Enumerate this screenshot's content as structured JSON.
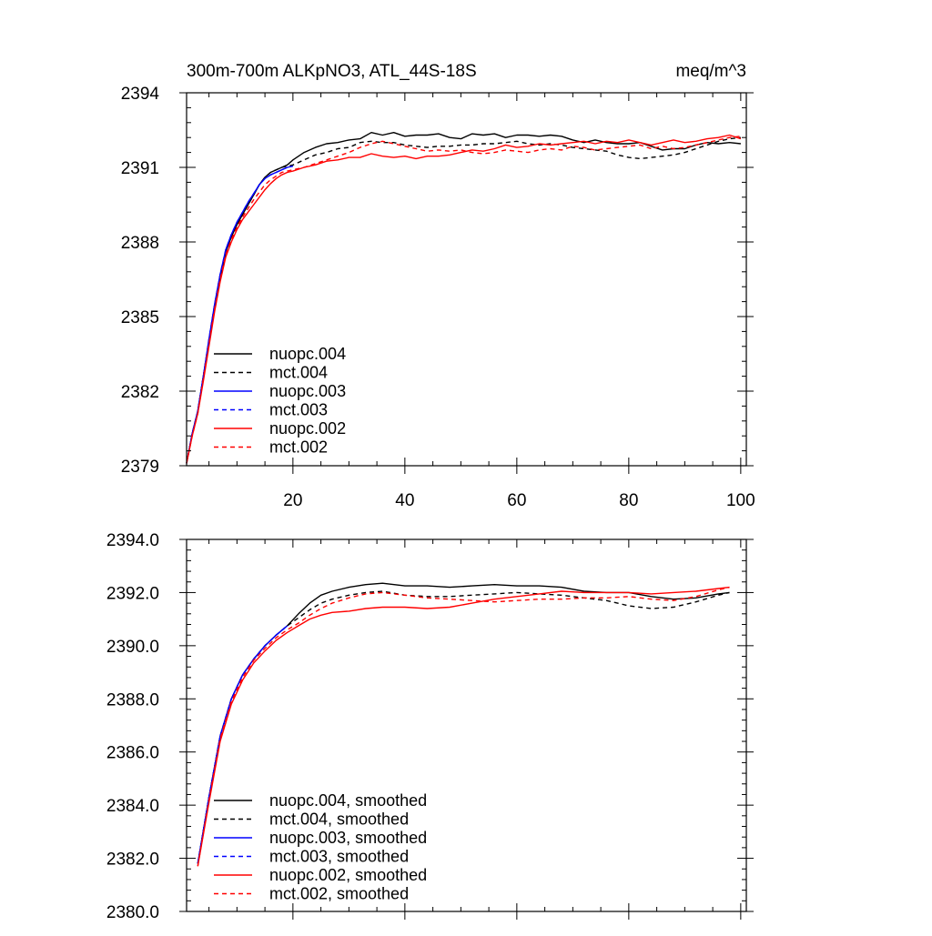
{
  "chart_data": [
    {
      "type": "line",
      "title_left": "300m-700m ALKpNO3, ATL_44S-18S",
      "title_right": "meq/m^3",
      "xlim": [
        1,
        101
      ],
      "ylim": [
        2379,
        2394
      ],
      "xticks": [
        20,
        40,
        60,
        80,
        100
      ],
      "xtick_labels": [
        "20",
        "40",
        "60",
        "80",
        "100"
      ],
      "yticks": [
        2379,
        2382,
        2385,
        2388,
        2391,
        2394
      ],
      "ytick_labels": [
        "2379",
        "2382",
        "2385",
        "2388",
        "2391",
        "2394"
      ],
      "series": [
        {
          "name": "nuopc.004",
          "color": "#000000",
          "dash": false,
          "x": [
            1,
            2,
            3,
            4,
            5,
            6,
            7,
            8,
            9,
            10,
            11,
            12,
            13,
            14,
            15,
            16,
            17,
            18,
            19,
            20,
            22,
            24,
            26,
            28,
            30,
            32,
            34,
            36,
            38,
            40,
            42,
            44,
            46,
            48,
            50,
            52,
            54,
            56,
            58,
            60,
            62,
            64,
            66,
            68,
            70,
            72,
            74,
            76,
            78,
            80,
            82,
            84,
            86,
            88,
            90,
            92,
            94,
            96,
            98,
            100
          ],
          "values": [
            2379.1,
            2380.3,
            2381.2,
            2382.6,
            2384.0,
            2385.4,
            2386.6,
            2387.6,
            2388.2,
            2388.7,
            2389.1,
            2389.5,
            2389.9,
            2390.3,
            2390.6,
            2390.8,
            2390.9,
            2391.0,
            2391.1,
            2391.3,
            2391.6,
            2391.8,
            2391.95,
            2392.0,
            2392.1,
            2392.15,
            2392.4,
            2392.3,
            2392.4,
            2392.25,
            2392.3,
            2392.3,
            2392.35,
            2392.2,
            2392.15,
            2392.35,
            2392.3,
            2392.35,
            2392.2,
            2392.3,
            2392.3,
            2392.25,
            2392.3,
            2392.25,
            2392.1,
            2392.0,
            2392.1,
            2392.0,
            2391.95,
            2391.95,
            2392.0,
            2391.85,
            2391.7,
            2391.75,
            2391.75,
            2391.9,
            2392.0,
            2391.95,
            2392.0,
            2391.95
          ]
        },
        {
          "name": "mct.004",
          "color": "#000000",
          "dash": true,
          "x": [
            1,
            2,
            3,
            4,
            5,
            6,
            7,
            8,
            9,
            10,
            11,
            12,
            13,
            14,
            15,
            16,
            17,
            18,
            19,
            20,
            22,
            24,
            26,
            28,
            30,
            32,
            34,
            36,
            38,
            40,
            42,
            44,
            46,
            48,
            50,
            52,
            54,
            56,
            58,
            60,
            62,
            64,
            66,
            68,
            70,
            72,
            74,
            76,
            78,
            80,
            82,
            84,
            86,
            88,
            90,
            92,
            94,
            96,
            98,
            100
          ],
          "values": [
            2379.1,
            2380.3,
            2381.2,
            2382.6,
            2384.0,
            2385.4,
            2386.6,
            2387.6,
            2388.2,
            2388.7,
            2389.1,
            2389.5,
            2389.9,
            2390.3,
            2390.6,
            2390.8,
            2390.9,
            2391.0,
            2391.05,
            2391.1,
            2391.3,
            2391.5,
            2391.6,
            2391.75,
            2391.8,
            2392.0,
            2392.05,
            2392.0,
            2392.0,
            2391.9,
            2391.85,
            2391.8,
            2391.85,
            2391.85,
            2391.9,
            2391.9,
            2391.95,
            2391.95,
            2392.0,
            2392.05,
            2391.95,
            2391.9,
            2391.95,
            2391.9,
            2391.8,
            2391.75,
            2391.7,
            2391.65,
            2391.5,
            2391.4,
            2391.35,
            2391.4,
            2391.45,
            2391.5,
            2391.6,
            2391.75,
            2391.9,
            2392.05,
            2392.15,
            2392.2
          ]
        },
        {
          "name": "nuopc.003",
          "color": "#0000ff",
          "dash": false,
          "x": [
            1,
            2,
            3,
            4,
            5,
            6,
            7,
            8,
            9,
            10,
            11,
            12,
            13,
            14,
            15,
            16,
            17,
            18,
            19,
            20
          ],
          "values": [
            2379.1,
            2380.3,
            2381.2,
            2382.6,
            2384.1,
            2385.5,
            2386.7,
            2387.7,
            2388.3,
            2388.8,
            2389.2,
            2389.6,
            2389.95,
            2390.3,
            2390.55,
            2390.7,
            2390.8,
            2390.9,
            2391.0,
            2391.05
          ]
        },
        {
          "name": "mct.003",
          "color": "#0000ff",
          "dash": true,
          "x": [
            1,
            2,
            3,
            4,
            5,
            6,
            7,
            8,
            9,
            10,
            11,
            12,
            13,
            14,
            15,
            16,
            17,
            18,
            19,
            20
          ],
          "values": [
            2379.1,
            2380.3,
            2381.2,
            2382.6,
            2384.1,
            2385.5,
            2386.7,
            2387.7,
            2388.3,
            2388.8,
            2389.2,
            2389.6,
            2389.95,
            2390.3,
            2390.55,
            2390.7,
            2390.8,
            2390.9,
            2391.0,
            2391.05
          ]
        },
        {
          "name": "nuopc.002",
          "color": "#ff0000",
          "dash": false,
          "x": [
            1,
            2,
            3,
            4,
            5,
            6,
            7,
            8,
            9,
            10,
            11,
            12,
            13,
            14,
            15,
            16,
            17,
            18,
            19,
            20,
            22,
            24,
            26,
            28,
            30,
            32,
            34,
            36,
            38,
            40,
            42,
            44,
            46,
            48,
            50,
            52,
            54,
            56,
            58,
            60,
            62,
            64,
            66,
            68,
            70,
            72,
            74,
            76,
            78,
            80,
            82,
            84,
            86,
            88,
            90,
            92,
            94,
            96,
            98,
            100
          ],
          "values": [
            2379.1,
            2380.2,
            2381.1,
            2382.4,
            2383.8,
            2385.2,
            2386.4,
            2387.4,
            2388.0,
            2388.5,
            2388.9,
            2389.2,
            2389.5,
            2389.8,
            2390.1,
            2390.35,
            2390.55,
            2390.7,
            2390.8,
            2390.85,
            2391.0,
            2391.1,
            2391.25,
            2391.3,
            2391.4,
            2391.4,
            2391.55,
            2391.45,
            2391.4,
            2391.45,
            2391.35,
            2391.45,
            2391.45,
            2391.5,
            2391.6,
            2391.7,
            2391.65,
            2391.75,
            2391.9,
            2391.8,
            2391.85,
            2391.95,
            2391.9,
            2391.95,
            2392.0,
            2392.05,
            2391.95,
            2392.05,
            2392.0,
            2392.1,
            2392.0,
            2391.9,
            2392.0,
            2392.1,
            2392.0,
            2392.05,
            2392.15,
            2392.2,
            2392.3,
            2392.15
          ]
        },
        {
          "name": "mct.002",
          "color": "#ff0000",
          "dash": true,
          "x": [
            1,
            2,
            3,
            4,
            5,
            6,
            7,
            8,
            9,
            10,
            11,
            12,
            13,
            14,
            15,
            16,
            17,
            18,
            19,
            20,
            22,
            24,
            26,
            28,
            30,
            32,
            34,
            36,
            38,
            40,
            42,
            44,
            46,
            48,
            50,
            52,
            54,
            56,
            58,
            60,
            62,
            64,
            66,
            68,
            70,
            72,
            74,
            76,
            78,
            80,
            82,
            84,
            86,
            88,
            90,
            92,
            94,
            96,
            98,
            100
          ],
          "values": [
            2379.1,
            2380.2,
            2381.1,
            2382.5,
            2383.9,
            2385.3,
            2386.5,
            2387.5,
            2388.1,
            2388.6,
            2389.0,
            2389.35,
            2389.7,
            2390.0,
            2390.3,
            2390.5,
            2390.65,
            2390.8,
            2390.85,
            2390.9,
            2391.0,
            2391.15,
            2391.3,
            2391.45,
            2391.6,
            2391.8,
            2391.95,
            2392.05,
            2391.95,
            2391.85,
            2391.75,
            2391.65,
            2391.7,
            2391.65,
            2391.7,
            2391.6,
            2391.55,
            2391.6,
            2391.7,
            2391.65,
            2391.6,
            2391.7,
            2391.75,
            2391.7,
            2391.85,
            2391.8,
            2391.7,
            2391.75,
            2391.8,
            2391.85,
            2391.9,
            2391.75,
            2391.85,
            2391.75,
            2391.8,
            2391.9,
            2392.0,
            2392.1,
            2392.2,
            2392.25
          ]
        }
      ]
    },
    {
      "type": "line",
      "xlim": [
        1,
        101
      ],
      "ylim": [
        2380,
        2394
      ],
      "xticks": [
        20,
        40,
        60,
        80,
        100
      ],
      "xtick_labels": [],
      "yticks": [
        2380,
        2382,
        2384,
        2386,
        2388,
        2390,
        2392,
        2394
      ],
      "ytick_labels": [
        "2380.0",
        "2382.0",
        "2384.0",
        "2386.0",
        "2388.0",
        "2390.0",
        "2392.0",
        "2394.0"
      ],
      "series": [
        {
          "name": "nuopc.004, smoothed",
          "color": "#000000",
          "dash": false,
          "x": [
            3,
            5,
            7,
            9,
            11,
            13,
            15,
            17,
            19,
            21,
            23,
            25,
            27,
            30,
            33,
            36,
            40,
            44,
            48,
            52,
            56,
            60,
            64,
            68,
            72,
            76,
            80,
            84,
            88,
            92,
            96,
            98
          ],
          "values": [
            2381.8,
            2384.3,
            2386.6,
            2388.0,
            2388.9,
            2389.5,
            2390.0,
            2390.4,
            2390.75,
            2391.2,
            2391.6,
            2391.9,
            2392.05,
            2392.2,
            2392.3,
            2392.35,
            2392.25,
            2392.25,
            2392.2,
            2392.25,
            2392.3,
            2392.25,
            2392.25,
            2392.2,
            2392.05,
            2392.0,
            2392.0,
            2391.85,
            2391.75,
            2391.8,
            2391.95,
            2392.0
          ]
        },
        {
          "name": "mct.004, smoothed",
          "color": "#000000",
          "dash": true,
          "x": [
            3,
            5,
            7,
            9,
            11,
            13,
            15,
            17,
            19,
            21,
            23,
            25,
            27,
            30,
            33,
            36,
            40,
            44,
            48,
            52,
            56,
            60,
            64,
            68,
            72,
            76,
            80,
            84,
            88,
            92,
            96,
            98
          ],
          "values": [
            2381.8,
            2384.3,
            2386.6,
            2388.0,
            2388.9,
            2389.5,
            2390.0,
            2390.4,
            2390.75,
            2391.05,
            2391.35,
            2391.6,
            2391.75,
            2391.9,
            2392.0,
            2392.05,
            2391.9,
            2391.85,
            2391.85,
            2391.9,
            2391.95,
            2392.0,
            2391.95,
            2391.9,
            2391.8,
            2391.7,
            2391.5,
            2391.4,
            2391.45,
            2391.65,
            2391.9,
            2392.0
          ]
        },
        {
          "name": "nuopc.003, smoothed",
          "color": "#0000ff",
          "dash": false,
          "x": [
            3,
            5,
            7,
            9,
            11,
            13,
            15,
            17,
            19
          ],
          "values": [
            2381.8,
            2384.3,
            2386.6,
            2388.0,
            2388.9,
            2389.5,
            2390.0,
            2390.4,
            2390.75
          ]
        },
        {
          "name": "mct.003, smoothed",
          "color": "#0000ff",
          "dash": true,
          "x": [
            3,
            5,
            7,
            9,
            11,
            13,
            15,
            17,
            19
          ],
          "values": [
            2381.8,
            2384.3,
            2386.6,
            2388.0,
            2388.9,
            2389.5,
            2390.0,
            2390.4,
            2390.75
          ]
        },
        {
          "name": "nuopc.002, smoothed",
          "color": "#ff0000",
          "dash": false,
          "x": [
            3,
            5,
            7,
            9,
            11,
            13,
            15,
            17,
            19,
            21,
            23,
            25,
            27,
            30,
            33,
            36,
            40,
            44,
            48,
            52,
            56,
            60,
            64,
            68,
            72,
            76,
            80,
            84,
            88,
            92,
            96,
            98
          ],
          "values": [
            2381.7,
            2384.1,
            2386.4,
            2387.8,
            2388.7,
            2389.35,
            2389.8,
            2390.2,
            2390.5,
            2390.75,
            2391.0,
            2391.15,
            2391.25,
            2391.3,
            2391.4,
            2391.45,
            2391.45,
            2391.4,
            2391.45,
            2391.6,
            2391.75,
            2391.85,
            2391.95,
            2392.05,
            2392.0,
            2392.0,
            2392.0,
            2391.95,
            2392.0,
            2392.05,
            2392.15,
            2392.2
          ]
        },
        {
          "name": "mct.002, smoothed",
          "color": "#ff0000",
          "dash": true,
          "x": [
            3,
            5,
            7,
            9,
            11,
            13,
            15,
            17,
            19,
            21,
            23,
            25,
            27,
            30,
            33,
            36,
            40,
            44,
            48,
            52,
            56,
            60,
            64,
            68,
            72,
            76,
            80,
            84,
            88,
            92,
            96,
            98
          ],
          "values": [
            2381.7,
            2384.2,
            2386.5,
            2387.9,
            2388.8,
            2389.45,
            2389.9,
            2390.3,
            2390.6,
            2390.85,
            2391.15,
            2391.4,
            2391.6,
            2391.8,
            2391.95,
            2392.0,
            2391.9,
            2391.8,
            2391.75,
            2391.7,
            2391.65,
            2391.7,
            2391.75,
            2391.75,
            2391.8,
            2391.8,
            2391.85,
            2391.75,
            2391.7,
            2391.85,
            2392.1,
            2392.2
          ]
        }
      ]
    }
  ]
}
